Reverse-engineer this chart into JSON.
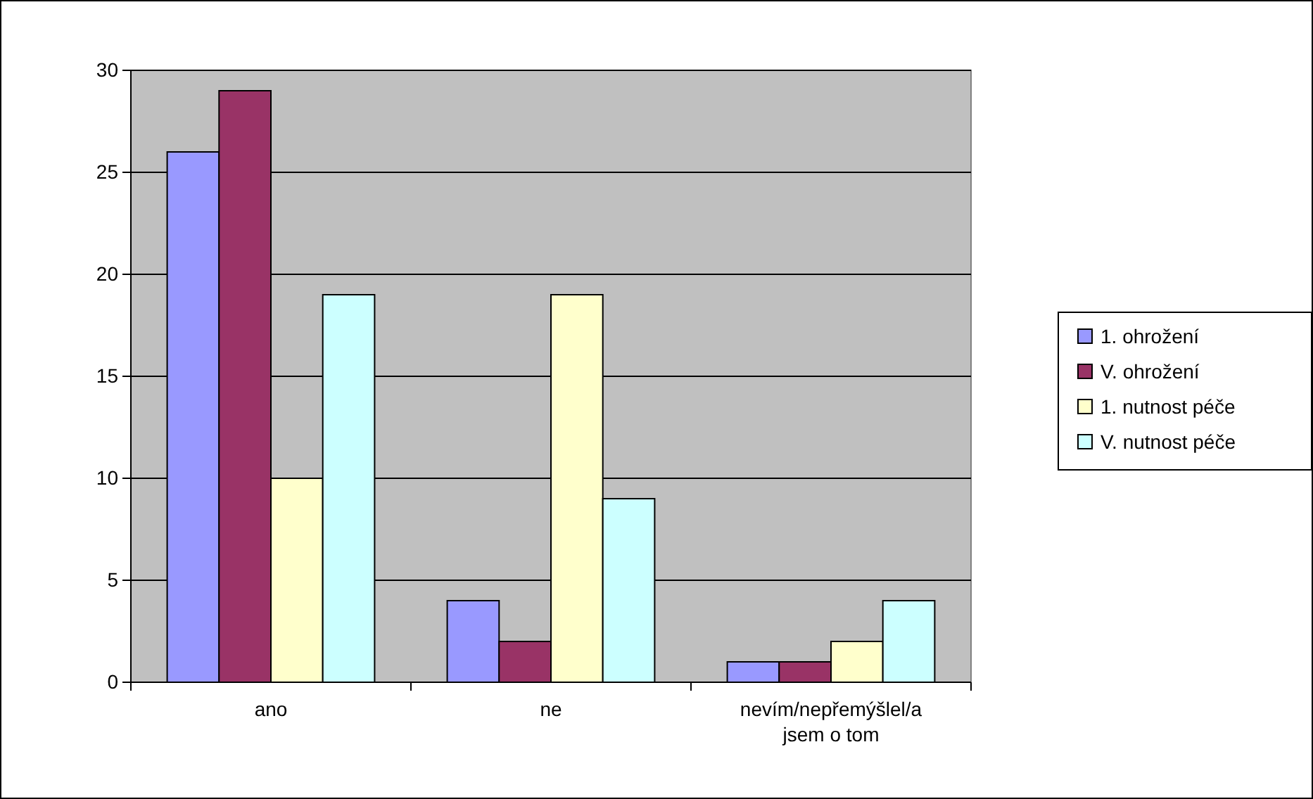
{
  "chart_data": {
    "type": "bar",
    "categories": [
      "ano",
      "ne",
      "nevím/nepřemýšlel/a jsem o tom"
    ],
    "series": [
      {
        "name": "1. ohrožení",
        "color": "#9999ff",
        "values": [
          26,
          4,
          1
        ]
      },
      {
        "name": "V. ohrožení",
        "color": "#993366",
        "values": [
          29,
          2,
          1
        ]
      },
      {
        "name": "1. nutnost péče",
        "color": "#ffffcc",
        "values": [
          10,
          19,
          2
        ]
      },
      {
        "name": "V. nutnost péče",
        "color": "#ccffff",
        "values": [
          19,
          9,
          4
        ]
      }
    ],
    "ylim": [
      0,
      30
    ],
    "yticks": [
      0,
      5,
      10,
      15,
      20,
      25,
      30
    ],
    "grid": "y",
    "legend": "right"
  }
}
